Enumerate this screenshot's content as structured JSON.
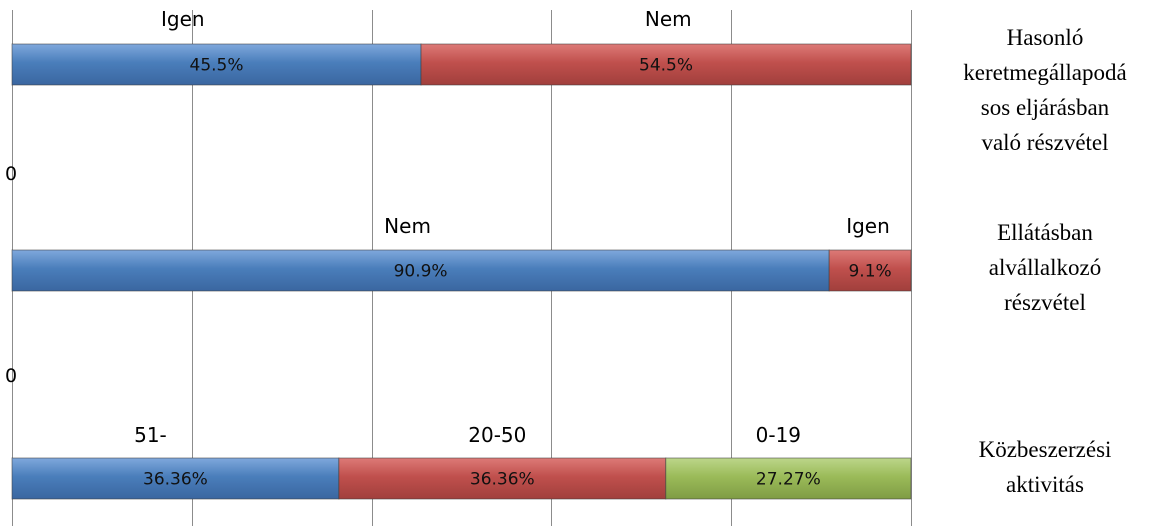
{
  "colors": {
    "blue": "#4a7ebb",
    "red": "#c0504d",
    "green": "#9bbb59",
    "grid": "#8c8c8c"
  },
  "chart_data": {
    "type": "bar",
    "orientation": "horizontal",
    "stacked": "percent",
    "xlim": [
      0,
      100
    ],
    "grid": true,
    "axis_tick_labels": [
      "0",
      "0"
    ],
    "rows": [
      {
        "category_lines": [
          "Hasonló",
          "keretmegállapodá",
          "sos eljárásban",
          "való részvétel"
        ],
        "segments": [
          {
            "name": "Igen",
            "value": 45.5,
            "label": "45.5%",
            "color": "blue"
          },
          {
            "name": "Nem",
            "value": 54.5,
            "label": "54.5%",
            "color": "red"
          }
        ]
      },
      {
        "category_lines": [
          "Ellátásban",
          "alvállalkozó",
          "részvétel"
        ],
        "segments": [
          {
            "name": "Nem",
            "value": 90.9,
            "label": "90.9%",
            "color": "blue"
          },
          {
            "name": "Igen",
            "value": 9.1,
            "label": "9.1%",
            "color": "red"
          }
        ]
      },
      {
        "category_lines": [
          "Közbeszerzési",
          "aktivitás"
        ],
        "segments": [
          {
            "name": "51-",
            "value": 36.36,
            "label": "36.36%",
            "color": "blue"
          },
          {
            "name": "20-50",
            "value": 36.36,
            "label": "36.36%",
            "color": "red"
          },
          {
            "name": "0-19",
            "value": 27.27,
            "label": "27.27%",
            "color": "green"
          }
        ]
      }
    ]
  }
}
